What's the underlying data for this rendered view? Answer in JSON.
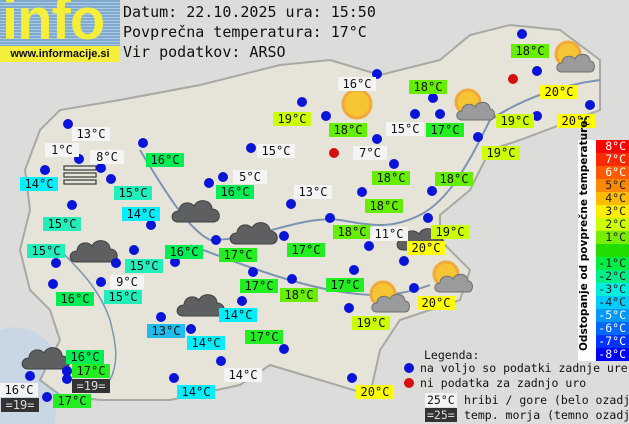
{
  "logo": {
    "word": "info",
    "url": "www.informacije.si"
  },
  "header": {
    "date_line": "Datum: 22.10.2025 ura: 15:50",
    "avg_line": "Povprečna temperatura: 17°C",
    "source_line": "Vir podatkov: ARSO"
  },
  "colors": {
    "dot_available": "#0a14d8",
    "dot_missing": "#d40f0f",
    "t20": "#ffff00",
    "t19": "#ccff00",
    "t18": "#66ee00",
    "t17": "#22ee22",
    "t16": "#00ee55",
    "t15": "#22eebb",
    "t14": "#00eeff",
    "t13": "#22bbee",
    "mountain": "#f4f4f4",
    "sea": "#333333"
  },
  "stations": [
    {
      "temp": "13°C",
      "style": "mountain",
      "dot": "available"
    },
    {
      "temp": "1°C",
      "style": "mountain",
      "dot": "available"
    },
    {
      "temp": "8°C",
      "style": "mountain",
      "dot": "available"
    },
    {
      "temp": "14°C",
      "style": "t14",
      "dot": "available"
    },
    {
      "temp": "16°C",
      "style": "t16",
      "dot": "available"
    },
    {
      "temp": "15°C",
      "style": "t15",
      "dot": "available"
    },
    {
      "temp": "15°C",
      "style": "t15",
      "dot": "available"
    },
    {
      "temp": "14°C",
      "style": "t14",
      "dot": "available"
    },
    {
      "temp": "15°C",
      "style": "t15",
      "dot": "available"
    },
    {
      "temp": "15°C",
      "style": "t15",
      "dot": "available"
    },
    {
      "temp": "9°C",
      "style": "mountain",
      "dot": "available"
    },
    {
      "temp": "16°C",
      "style": "t16",
      "dot": "available"
    },
    {
      "temp": "16°C",
      "style": "t16",
      "dot": "available"
    },
    {
      "temp": "15°C",
      "style": "t15",
      "dot": "available"
    },
    {
      "temp": "14°C",
      "style": "t14",
      "dot": "available"
    },
    {
      "temp": "13°C",
      "style": "t13",
      "dot": "available"
    },
    {
      "temp": "14°C",
      "style": "t14",
      "dot": "available"
    },
    {
      "temp": "17°C",
      "style": "t17",
      "dot": "available"
    },
    {
      "temp": "16°C",
      "style": "t16",
      "dot": "available"
    },
    {
      "temp": "17°C",
      "style": "t17",
      "dot": "available"
    },
    {
      "temp": "=19=",
      "style": "sea",
      "dot": "available"
    },
    {
      "temp": "16°C",
      "style": "mountain",
      "dot": "available"
    },
    {
      "temp": "=19=",
      "style": "sea",
      "dot": "none"
    },
    {
      "temp": "17°C",
      "style": "t17",
      "dot": "available"
    },
    {
      "temp": "14°C",
      "style": "mountain",
      "dot": "available"
    },
    {
      "temp": "14°C",
      "style": "t14",
      "dot": "available"
    },
    {
      "temp": "16°C",
      "style": "mountain",
      "dot": "available"
    },
    {
      "temp": "19°C",
      "style": "t19",
      "dot": "available"
    },
    {
      "temp": "18°C",
      "style": "t18",
      "dot": "available"
    },
    {
      "temp": "18°C",
      "style": "t18",
      "dot": "available"
    },
    {
      "temp": "15°C",
      "style": "mountain",
      "dot": "available"
    },
    {
      "temp": "17°C",
      "style": "t17",
      "dot": "available"
    },
    {
      "temp": "7°C",
      "style": "mountain",
      "dot": "available"
    },
    {
      "temp": "",
      "style": "none",
      "dot": "missing"
    },
    {
      "temp": "15°C",
      "style": "mountain",
      "dot": "available"
    },
    {
      "temp": "18°C",
      "style": "t18",
      "dot": "available"
    },
    {
      "temp": "5°C",
      "style": "mountain",
      "dot": "available"
    },
    {
      "temp": "16°C",
      "style": "t16",
      "dot": "available"
    },
    {
      "temp": "13°C",
      "style": "mountain",
      "dot": "available"
    },
    {
      "temp": "18°C",
      "style": "t18",
      "dot": "available"
    },
    {
      "temp": "18°C",
      "style": "t18",
      "dot": "available"
    },
    {
      "temp": "18°C",
      "style": "t18",
      "dot": "available"
    },
    {
      "temp": "11°C",
      "style": "mountain",
      "dot": "available"
    },
    {
      "temp": "19°C",
      "style": "t19",
      "dot": "available"
    },
    {
      "temp": "20°C",
      "style": "t20",
      "dot": "available"
    },
    {
      "temp": "17°C",
      "style": "t17",
      "dot": "available"
    },
    {
      "temp": "17°C",
      "style": "t17",
      "dot": "available"
    },
    {
      "temp": "17°C",
      "style": "t17",
      "dot": "available"
    },
    {
      "temp": "18°C",
      "style": "t18",
      "dot": "available"
    },
    {
      "temp": "17°C",
      "style": "t17",
      "dot": "available"
    },
    {
      "temp": "19°C",
      "style": "t19",
      "dot": "available"
    },
    {
      "temp": "20°C",
      "style": "t20",
      "dot": "available"
    },
    {
      "temp": "20°C",
      "style": "t20",
      "dot": "available"
    },
    {
      "temp": "18°C",
      "style": "t18",
      "dot": "available"
    },
    {
      "temp": "",
      "style": "none",
      "dot": "missing"
    },
    {
      "temp": "20°C",
      "style": "t20",
      "dot": "available"
    },
    {
      "temp": "19°C",
      "style": "t19",
      "dot": "available"
    },
    {
      "temp": "20°C",
      "style": "t20",
      "dot": "available"
    },
    {
      "temp": "19°C",
      "style": "t19",
      "dot": "available"
    }
  ],
  "weather_icons": [
    "fog",
    "cloud",
    "cloud",
    "cloud",
    "cloud",
    "cloud",
    "cloud",
    "sun",
    "sun-cloud",
    "sun-cloud",
    "sun-cloud",
    "sun-cloud"
  ],
  "scale": {
    "title": "Odstopanje od povprečne temperature:",
    "rows": [
      {
        "label": "8°C",
        "color": "#ff0000",
        "text": "#ffffff"
      },
      {
        "label": "7°C",
        "color": "#ff2a00",
        "text": "#ffffff"
      },
      {
        "label": "6°C",
        "color": "#ff5a00",
        "text": "#ffffff"
      },
      {
        "label": "5°C",
        "color": "#ff8800",
        "text": "#222222"
      },
      {
        "label": "4°C",
        "color": "#ffbb00",
        "text": "#222222"
      },
      {
        "label": "3°C",
        "color": "#ffee00",
        "text": "#222222"
      },
      {
        "label": "2°C",
        "color": "#ccff00",
        "text": "#222222"
      },
      {
        "label": "1°C",
        "color": "#77ee00",
        "text": "#222222"
      },
      {
        "label": "",
        "color": "#22dd00",
        "text": "#222222"
      },
      {
        "label": "-1°C",
        "color": "#00ee44",
        "text": "#222222"
      },
      {
        "label": "-2°C",
        "color": "#00ee88",
        "text": "#222222"
      },
      {
        "label": "-3°C",
        "color": "#00eedd",
        "text": "#222222"
      },
      {
        "label": "-4°C",
        "color": "#00ccff",
        "text": "#222222"
      },
      {
        "label": "-5°C",
        "color": "#0099ff",
        "text": "#ffffff"
      },
      {
        "label": "-6°C",
        "color": "#0066ff",
        "text": "#ffffff"
      },
      {
        "label": "-7°C",
        "color": "#0033ff",
        "text": "#ffffff"
      },
      {
        "label": "-8°C",
        "color": "#0000ff",
        "text": "#ffffff"
      }
    ]
  },
  "legend": {
    "title": "Legenda:",
    "available": "na voljo so podatki zadnje ure",
    "missing": "ni podatka za zadnjo uro",
    "mountain_sample": "25°C",
    "mountain_text": "hribi / gore (belo ozadje)",
    "sea_sample": "=25=",
    "sea_text": "temp. morja (temno ozadje)"
  }
}
